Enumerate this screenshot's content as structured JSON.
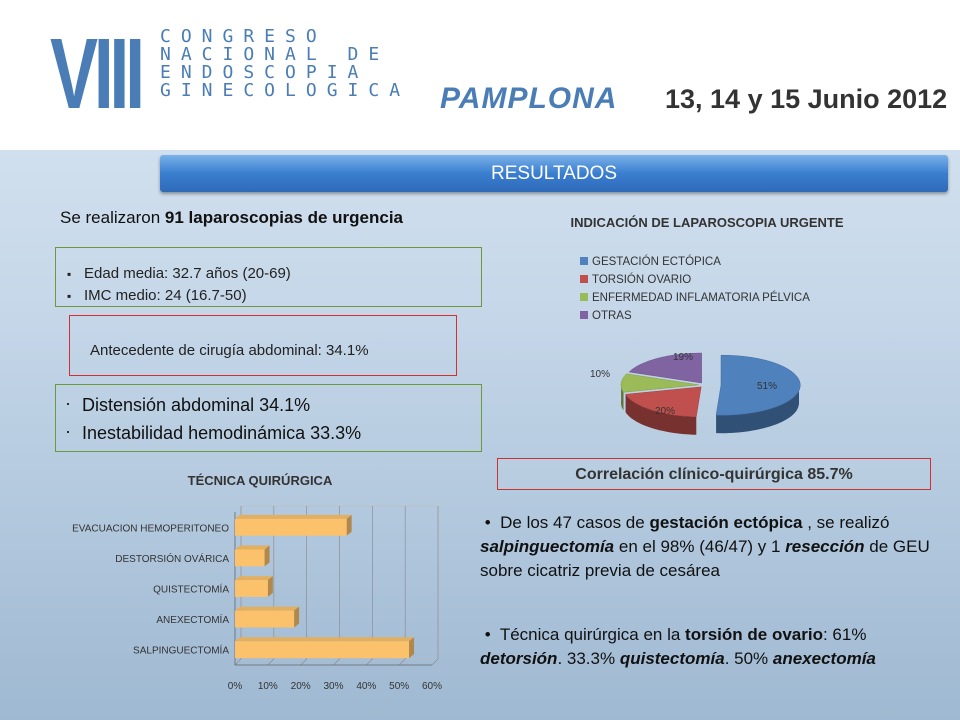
{
  "header": {
    "numeral": "VIII",
    "congress_lines": [
      "CONGRESO",
      "NACIONAL DE",
      "ENDOSCOPIA",
      "GINECOLOGICA"
    ],
    "city": "PAMPLONA",
    "dates": "13, 14 y 15 Junio 2012"
  },
  "banner": {
    "label": "RESULTADOS"
  },
  "intro": {
    "prefix": "Se realizaron ",
    "bold": "91 laparoscopias de urgencia"
  },
  "stats": {
    "items": [
      "Edad media: 32.7 años (20-69)",
      "IMC medio: 24 (16.7-50)"
    ],
    "antecedente": "Antecedente de cirugía abdominal: 34.1%",
    "clinical": [
      "Distensión abdominal 34.1%",
      "Inestabilidad hemodinámica 33.3%"
    ]
  },
  "correlation": "Correlación clínico-quirúrgica 85.7%",
  "paragraph1": {
    "a": "De los 47 casos de ",
    "b": "gestación ectópica",
    "c": " , se realizó ",
    "d": "salpinguectomía",
    "e": " en  el 98% (46/47) y  1 ",
    "f": "resección",
    "g": " de GEU sobre cicatriz previa de cesárea"
  },
  "paragraph2": {
    "a": "Técnica quirúrgica en la ",
    "b": "torsión de ovario",
    "c": ": 61% ",
    "d": "detorsión",
    "e": ". 33.3% ",
    "f": "quistectomía",
    "g": ". 50% ",
    "h": "anexectomía"
  },
  "chart_data": [
    {
      "type": "pie",
      "title": "INDICACIÓN DE LAPAROSCOPIA URGENTE",
      "categories": [
        "GESTACIÓN ECTÓPICA",
        "TORSIÓN OVARIO",
        "ENFERMEDAD INFLAMATORIA PÉLVICA",
        "OTRAS"
      ],
      "values": [
        51,
        20,
        10,
        19
      ],
      "labels": [
        "51%",
        "20%",
        "10%",
        "19%"
      ],
      "colors": [
        "#4f81bd",
        "#c0504d",
        "#9bbb59",
        "#8064a2"
      ],
      "legend": "top"
    },
    {
      "type": "bar",
      "orientation": "horizontal",
      "title": "TÉCNICA QUIRÚRGICA",
      "categories": [
        "EVACUACION HEMOPERITONEO",
        "DESTORSIÓN OVÁRICA",
        "QUISTECTOMÍA",
        "ANEXECTOMÍA",
        "SALPINGUECTOMÍA"
      ],
      "values": [
        34,
        9,
        10,
        18,
        53
      ],
      "xlim": [
        0,
        60
      ],
      "ticks": [
        "0%",
        "10%",
        "20%",
        "30%",
        "40%",
        "50%",
        "60%"
      ],
      "color": "#fbc26b",
      "grid": true
    }
  ]
}
